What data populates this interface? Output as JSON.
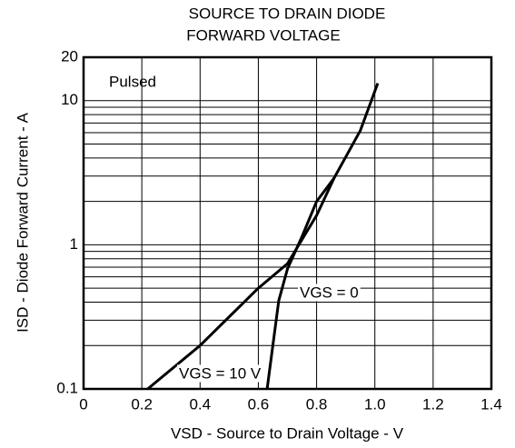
{
  "chart_data": {
    "type": "line",
    "title": [
      "SOURCE TO DRAIN DIODE",
      "FORWARD VOLTAGE"
    ],
    "x_label": "VSD - Source to Drain Voltage - V",
    "y_label": "ISD - Diode Forward Current - A",
    "annotation": "Pulsed",
    "log_y": true,
    "grid": true,
    "xlim": [
      0,
      1.4
    ],
    "xticks": [
      0,
      0.2,
      0.4,
      0.6,
      0.8,
      {
        "value": 1,
        "label": "1.0"
      },
      1.2,
      1.4
    ],
    "ylim": [
      0.1,
      20
    ],
    "yticks": [
      0.1,
      1,
      10,
      20
    ],
    "series": [
      {
        "name": "VGS = 10 V",
        "color": "#000000",
        "x": [
          0.22,
          0.4,
          0.6,
          0.7,
          0.8,
          0.86,
          0.95,
          1.01
        ],
        "values": [
          0.1,
          0.2,
          0.5,
          0.74,
          1.6,
          2.9,
          6.2,
          13.2
        ]
      },
      {
        "name": "VGS = 0",
        "color": "#000000",
        "x": [
          0.63,
          0.67,
          0.7,
          0.75,
          0.8,
          0.86
        ],
        "values": [
          0.1,
          0.41,
          0.68,
          1.14,
          2.0,
          2.9
        ]
      }
    ]
  }
}
